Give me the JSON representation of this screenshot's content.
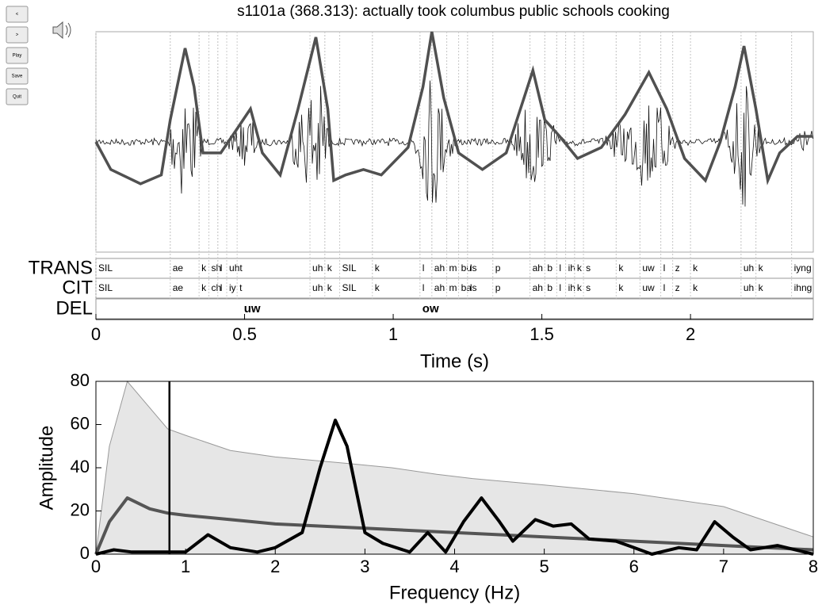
{
  "title": "s1101a (368.313): actually took  columbus public schools cooking",
  "buttons": [
    "<",
    ">",
    "Play",
    "Save",
    "Quit"
  ],
  "chart_data": [
    {
      "type": "waveform",
      "xlabel": "Time (s)",
      "xlim": [
        0,
        2.413
      ],
      "xticks": [
        0,
        0.5,
        1,
        1.5,
        2
      ],
      "ylim": [
        -1,
        1
      ],
      "series": [
        {
          "color": "#505050",
          "x": [
            0,
            0.05,
            0.15,
            0.22,
            0.25,
            0.3,
            0.33,
            0.36,
            0.42,
            0.47,
            0.52,
            0.56,
            0.62,
            0.68,
            0.74,
            0.78,
            0.8,
            0.84,
            0.9,
            0.96,
            1.05,
            1.1,
            1.13,
            1.17,
            1.22,
            1.3,
            1.38,
            1.44,
            1.47,
            1.51,
            1.56,
            1.62,
            1.7,
            1.78,
            1.86,
            1.92,
            1.98,
            2.05,
            2.1,
            2.15,
            2.18,
            2.22,
            2.26,
            2.3,
            2.36,
            2.41
          ],
          "values": [
            0,
            -0.25,
            -0.38,
            -0.3,
            0.2,
            0.85,
            0.5,
            -0.1,
            -0.1,
            0.1,
            0.3,
            -0.1,
            -0.3,
            0.3,
            0.95,
            0.3,
            -0.35,
            -0.3,
            -0.25,
            -0.3,
            -0.05,
            0.5,
            1.0,
            0.4,
            -0.1,
            -0.25,
            -0.1,
            0.4,
            0.65,
            0.2,
            0.05,
            -0.15,
            -0.05,
            0.25,
            0.63,
            0.3,
            -0.15,
            -0.35,
            0,
            0.5,
            0.87,
            0.3,
            -0.35,
            -0.1,
            0.05,
            0.05
          ]
        }
      ],
      "tiers": [
        {
          "name": "TRANS",
          "tokens": [
            "SIL",
            "ae",
            "k",
            "sh",
            "l",
            "uht",
            "uh",
            "k",
            "SIL",
            "k",
            "l",
            "ah",
            "m",
            "bu",
            "ls",
            "p",
            "ah",
            "b",
            "l",
            "ih",
            "k",
            "s",
            "k",
            "uw",
            "l",
            "z",
            "k",
            "uh",
            "k",
            "iyng"
          ],
          "x": [
            0,
            0.25,
            0.347,
            0.38,
            0.41,
            0.44,
            0.72,
            0.77,
            0.82,
            0.93,
            1.09,
            1.13,
            1.18,
            1.22,
            1.25,
            1.335,
            1.46,
            1.51,
            1.55,
            1.58,
            1.61,
            1.64,
            1.75,
            1.83,
            1.9,
            1.94,
            2.0,
            2.17,
            2.22,
            2.34
          ]
        },
        {
          "name": "CIT",
          "tokens": [
            "SIL",
            "ae",
            "k",
            "ch",
            "l",
            "iy",
            "t",
            "uh",
            "k",
            "SIL",
            "k",
            "l",
            "ah",
            "m",
            "ba",
            "ls",
            "p",
            "ah",
            "b",
            "l",
            "ih",
            "k",
            "s",
            "k",
            "uw",
            "l",
            "z",
            "k",
            "uh",
            "k",
            "ihng"
          ],
          "x": [
            0,
            0.25,
            0.347,
            0.38,
            0.41,
            0.44,
            0.475,
            0.72,
            0.77,
            0.82,
            0.93,
            1.09,
            1.13,
            1.18,
            1.22,
            1.25,
            1.335,
            1.46,
            1.51,
            1.55,
            1.58,
            1.61,
            1.64,
            1.75,
            1.83,
            1.9,
            1.94,
            2.0,
            2.17,
            2.22,
            2.34
          ]
        },
        {
          "name": "DEL",
          "tokens": [
            "uw",
            "ow"
          ],
          "x": [
            0.49,
            1.09
          ]
        }
      ]
    },
    {
      "type": "line",
      "xlabel": "Frequency (Hz)",
      "ylabel": "Amplitude",
      "xlim": [
        0,
        8
      ],
      "ylim": [
        0,
        80
      ],
      "xticks": [
        0,
        1,
        2,
        3,
        4,
        5,
        6,
        7,
        8
      ],
      "yticks": [
        0,
        20,
        40,
        60,
        80
      ],
      "marker_x": 0.82,
      "series": [
        {
          "color": "#e6e6e6",
          "fill": true,
          "x": [
            0,
            0.15,
            0.35,
            0.8,
            1.0,
            1.5,
            2,
            2.8,
            3.3,
            3.8,
            4.2,
            5,
            6,
            7,
            7.5,
            8
          ],
          "values": [
            0,
            50,
            80,
            58,
            55,
            48,
            45,
            42,
            40,
            37,
            35,
            32,
            28,
            22,
            15,
            8
          ]
        },
        {
          "color": "#555555",
          "x": [
            0,
            0.15,
            0.35,
            0.6,
            0.8,
            1,
            1.5,
            2,
            3,
            4,
            5,
            6,
            7,
            8
          ],
          "values": [
            0,
            15,
            26,
            21,
            19,
            18,
            16,
            14,
            12,
            10,
            8,
            6,
            4,
            2
          ]
        },
        {
          "color": "#000000",
          "x": [
            0,
            0.2,
            0.4,
            0.8,
            1,
            1.25,
            1.5,
            1.8,
            2,
            2.3,
            2.5,
            2.67,
            2.8,
            3,
            3.2,
            3.5,
            3.7,
            3.9,
            4.1,
            4.3,
            4.5,
            4.65,
            4.9,
            5.1,
            5.3,
            5.5,
            5.8,
            6,
            6.2,
            6.5,
            6.7,
            6.9,
            7.1,
            7.3,
            7.6,
            8
          ],
          "values": [
            0,
            2,
            1,
            1,
            1,
            9,
            3,
            1,
            3,
            10,
            40,
            62,
            50,
            10,
            5,
            1,
            10,
            1,
            15,
            26,
            15,
            6,
            16,
            13,
            14,
            7,
            6,
            3,
            0,
            3,
            2,
            15,
            8,
            2,
            4,
            0
          ]
        }
      ]
    }
  ]
}
